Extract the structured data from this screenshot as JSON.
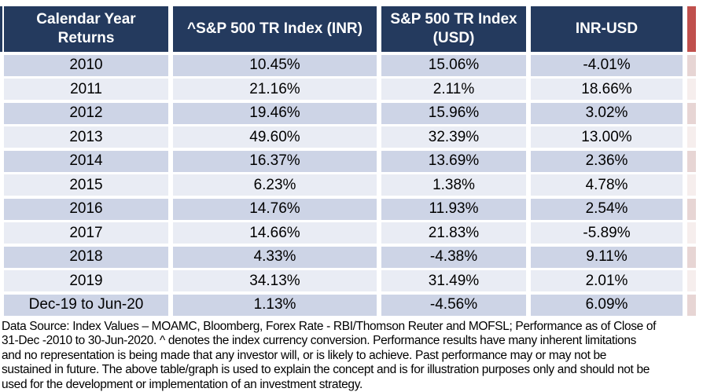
{
  "table": {
    "columns": [
      {
        "lines": [
          "Calendar Year",
          "Returns"
        ]
      },
      {
        "lines": [
          "^S&P 500 TR Index (INR)"
        ]
      },
      {
        "lines": [
          "S&P 500 TR Index",
          "(USD)"
        ]
      },
      {
        "lines": [
          "INR-USD"
        ]
      }
    ],
    "rows": [
      [
        "2010",
        "10.45%",
        "15.06%",
        "-4.01%"
      ],
      [
        "2011",
        "21.16%",
        "2.11%",
        "18.66%"
      ],
      [
        "2012",
        "19.46%",
        "15.96%",
        "3.02%"
      ],
      [
        "2013",
        "49.60%",
        "32.39%",
        "13.00%"
      ],
      [
        "2014",
        "16.37%",
        "13.69%",
        "2.36%"
      ],
      [
        "2015",
        "6.23%",
        "1.38%",
        "4.78%"
      ],
      [
        "2016",
        "14.76%",
        "11.93%",
        "2.54%"
      ],
      [
        "2017",
        "14.66%",
        "21.83%",
        "-5.89%"
      ],
      [
        "2018",
        "4.33%",
        "-4.38%",
        "9.11%"
      ],
      [
        "2019",
        "34.13%",
        "31.49%",
        "2.01%"
      ],
      [
        "Dec-19 to Jun-20",
        "1.13%",
        "-4.56%",
        "6.09%"
      ]
    ]
  },
  "footer": {
    "lines": [
      "Data Source: Index Values – MOAMC, Bloomberg, Forex Rate - RBI/Thomson Reuter and MOFSL; Performance as of Close of",
      "31-Dec -2010 to 30-Jun-2020. ^ denotes the index currency conversion. Performance results have many inherent limitations",
      "and no representation is being made that any investor will, or is likely to achieve. Past performance may or may not be",
      "sustained in future. The above table/graph is used to explain the concept and is for illustration purposes only and should not be",
      "used for the development or implementation of an investment strategy."
    ],
    "full_text": "Data Source: Index Values – MOAMC, Bloomberg, Forex Rate - RBI/Thomson Reuter and MOFSL; Performance as of Close of 31-Dec -2010 to 30-Jun-2020. ^ denotes the index currency conversion. Performance results have many inherent limitations and no representation is being made that any investor will, or is likely to achieve. Past performance may or may not be sustained in future. The above table/graph is used to explain the concept and is for illustration purposes only and should not be used for the development or implementation of an investment strategy."
  },
  "colors": {
    "header_navy": "#243A5E",
    "band_dark": "#CDD4E6",
    "band_light": "#E9ECF4",
    "red_accent": "#C0504D",
    "red_band_dark": "#E7D5D4",
    "red_band_light": "#F6EEED"
  }
}
